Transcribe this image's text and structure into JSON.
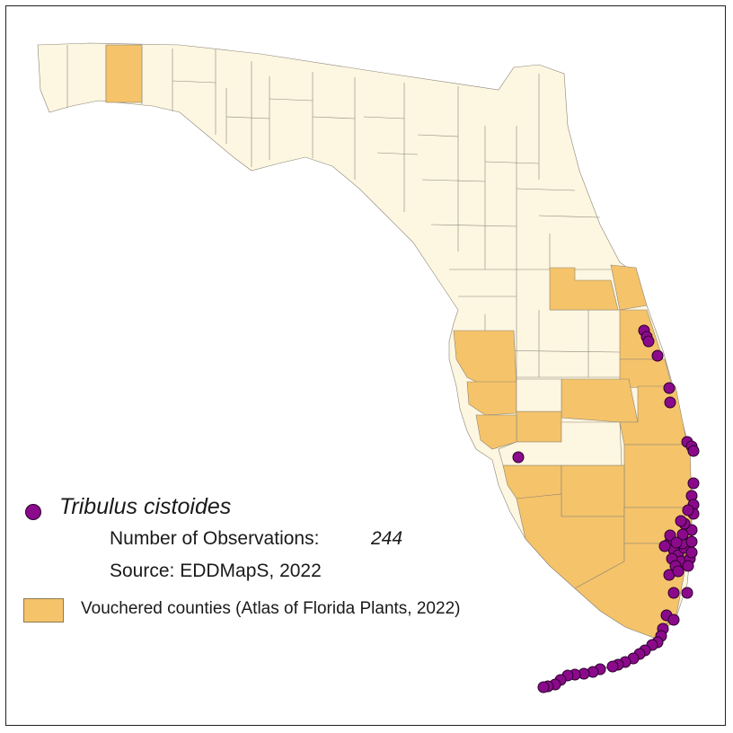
{
  "map": {
    "colors": {
      "county_default": "#fdf6e1",
      "county_vouchered": "#f5c36a",
      "county_border": "#8a8578",
      "observation": "#8b0a8b"
    }
  },
  "legend": {
    "species": "Tribulus cistoides",
    "observations_label": "Number of Observations:",
    "observations_count": "244",
    "source": "Source: EDDMapS, 2022",
    "vouchered_label": "Vouchered counties (Atlas of Florida Plants, 2022)"
  }
}
